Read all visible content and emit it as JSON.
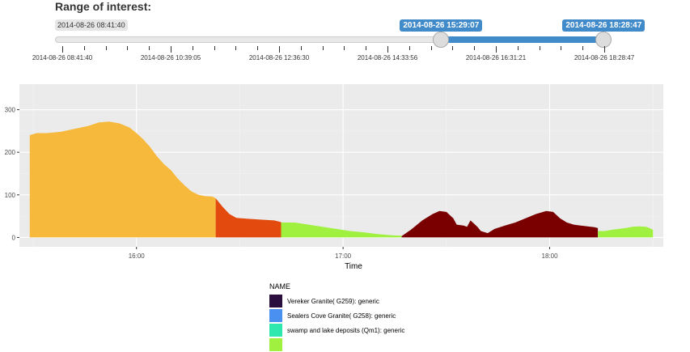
{
  "slider": {
    "title": "Range of interest:",
    "min_label": "2014-08-26 08:41:40",
    "from_label": "2014-08-26 15:29:07",
    "to_label": "2014-08-26 18:28:47",
    "from_fraction": 0.699,
    "to_fraction": 0.999,
    "ticks": [
      "2014-08-26 08:41:40",
      "2014-08-26 10:39:05",
      "2014-08-26 12:36:30",
      "2014-08-26 14:33:56",
      "2014-08-26 16:31:21",
      "2014-08-26 18:28:47"
    ],
    "accent_color": "#428bca"
  },
  "chart_data": {
    "type": "area",
    "xlabel": "Time",
    "ylabel": "",
    "xlim": [
      "15:26",
      "18:33"
    ],
    "ylim": [
      -22,
      360
    ],
    "x_ticks": [
      "16:00",
      "17:00",
      "18:00"
    ],
    "y_ticks": [
      0,
      100,
      200,
      300
    ],
    "grid": true,
    "background": "#ebebeb",
    "legend": {
      "title": "NAME",
      "position": "bottom",
      "entries": [
        {
          "label": "Vereker Granite( G259): generic",
          "color": "#2a0f3f"
        },
        {
          "label": "Sealers Cove Granite( G258): generic",
          "color": "#4a90f0"
        },
        {
          "label": "swamp and lake deposits (Qm1): generic",
          "color": "#2ee8b0"
        },
        {
          "label": "",
          "color": "#a0f040"
        }
      ]
    },
    "series": [
      {
        "color": "#f7b93b",
        "points": [
          [
            "15:29",
            240
          ],
          [
            "15:31",
            245
          ],
          [
            "15:34",
            245
          ],
          [
            "15:38",
            248
          ],
          [
            "15:42",
            255
          ],
          [
            "15:46",
            262
          ],
          [
            "15:49",
            270
          ],
          [
            "15:52",
            272
          ],
          [
            "15:55",
            268
          ],
          [
            "15:58",
            258
          ],
          [
            "16:00",
            245
          ],
          [
            "16:02",
            230
          ],
          [
            "16:04",
            212
          ],
          [
            "16:06",
            190
          ],
          [
            "16:08",
            172
          ],
          [
            "16:10",
            158
          ],
          [
            "16:12",
            138
          ],
          [
            "16:14",
            122
          ],
          [
            "16:16",
            108
          ],
          [
            "16:18",
            100
          ],
          [
            "16:20",
            97
          ],
          [
            "16:22",
            96
          ],
          [
            "16:23",
            92
          ]
        ]
      },
      {
        "color": "#e34a0d",
        "points": [
          [
            "16:23",
            92
          ],
          [
            "16:25",
            72
          ],
          [
            "16:27",
            55
          ],
          [
            "16:29",
            46
          ],
          [
            "16:32",
            44
          ],
          [
            "16:36",
            42
          ],
          [
            "16:40",
            40
          ],
          [
            "16:42",
            36
          ],
          [
            "16:42",
            35
          ]
        ]
      },
      {
        "color": "#a0f040",
        "points": [
          [
            "16:42",
            35
          ],
          [
            "16:46",
            35
          ],
          [
            "16:50",
            30
          ],
          [
            "16:54",
            25
          ],
          [
            "16:58",
            20
          ],
          [
            "17:02",
            15
          ],
          [
            "17:06",
            12
          ],
          [
            "17:10",
            8
          ],
          [
            "17:14",
            5
          ],
          [
            "17:17",
            4
          ]
        ]
      },
      {
        "color": "#7a0000",
        "points": [
          [
            "17:17",
            3
          ],
          [
            "17:20",
            20
          ],
          [
            "17:23",
            40
          ],
          [
            "17:26",
            55
          ],
          [
            "17:28",
            62
          ],
          [
            "17:30",
            60
          ],
          [
            "17:32",
            45
          ],
          [
            "17:33",
            30
          ],
          [
            "17:35",
            28
          ],
          [
            "17:36",
            25
          ],
          [
            "17:37",
            40
          ],
          [
            "17:39",
            25
          ],
          [
            "17:40",
            15
          ],
          [
            "17:42",
            10
          ],
          [
            "17:44",
            20
          ],
          [
            "17:47",
            28
          ],
          [
            "17:50",
            35
          ],
          [
            "17:53",
            45
          ],
          [
            "17:56",
            55
          ],
          [
            "17:59",
            62
          ],
          [
            "18:01",
            60
          ],
          [
            "18:03",
            45
          ],
          [
            "18:05",
            35
          ],
          [
            "18:07",
            30
          ],
          [
            "18:09",
            28
          ],
          [
            "18:11",
            26
          ],
          [
            "18:13",
            24
          ],
          [
            "18:14",
            22
          ]
        ]
      },
      {
        "color": "#a0f040",
        "points": [
          [
            "18:14",
            15
          ],
          [
            "18:16",
            15
          ],
          [
            "18:18",
            18
          ],
          [
            "18:20",
            20
          ],
          [
            "18:22",
            22
          ],
          [
            "18:24",
            25
          ],
          [
            "18:26",
            26
          ],
          [
            "18:28",
            25
          ],
          [
            "18:29",
            22
          ],
          [
            "18:30",
            18
          ]
        ]
      }
    ]
  }
}
